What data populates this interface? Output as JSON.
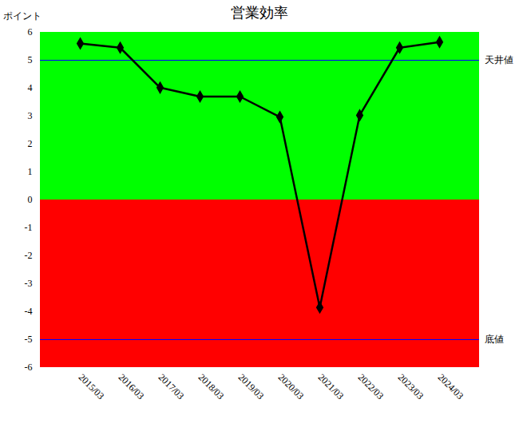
{
  "chart_data": {
    "type": "line",
    "title": "営業効率",
    "y_label": "ポイント",
    "categories": [
      "2015/03",
      "2016/03",
      "2017/03",
      "2018/03",
      "2019/03",
      "2020/03",
      "2021/03",
      "2022/03",
      "2023/03",
      "2024/03"
    ],
    "values": [
      5.6,
      5.45,
      4.02,
      3.7,
      3.7,
      2.97,
      -3.85,
      3.03,
      5.45,
      5.65
    ],
    "color": "#000000",
    "marker": "diamond",
    "ylim": [
      -6,
      6
    ],
    "yticks": [
      -6,
      -5,
      -4,
      -3,
      -2,
      -1,
      0,
      1,
      2,
      3,
      4,
      5,
      6
    ],
    "bands": [
      {
        "y1": 0,
        "y2": 6,
        "color": "#00ff00"
      },
      {
        "y1": -6,
        "y2": 0,
        "color": "#ff0000"
      }
    ],
    "reference_lines": [
      {
        "value": 5,
        "label": "天井値",
        "color": "#0000ff"
      },
      {
        "value": -5,
        "label": "底値",
        "color": "#0000ff"
      }
    ],
    "grid": false
  }
}
